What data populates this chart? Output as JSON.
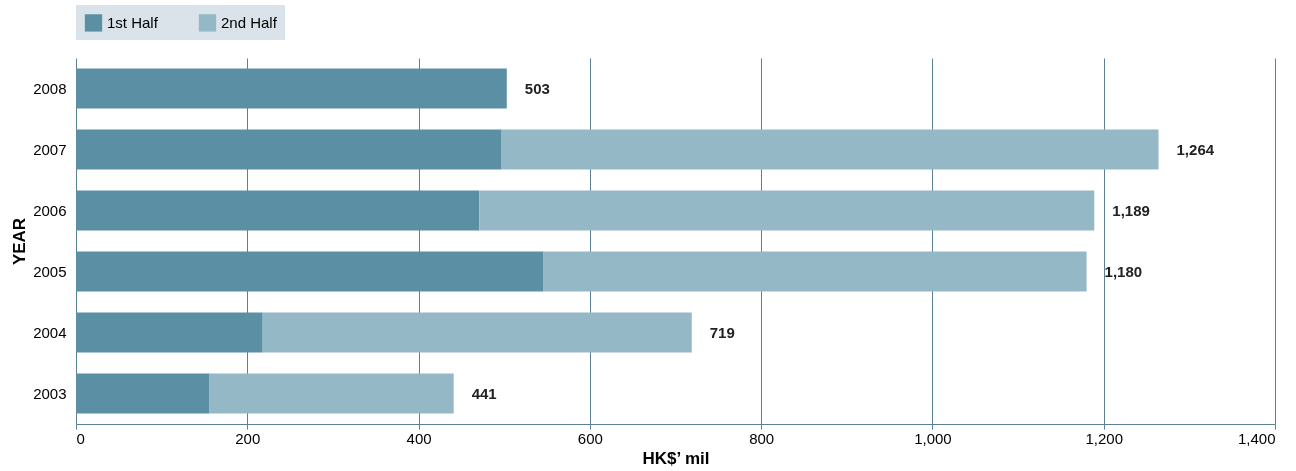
{
  "chart_data": {
    "type": "bar",
    "orientation": "horizontal",
    "stacked": true,
    "categories": [
      "2008",
      "2007",
      "2006",
      "2005",
      "2004",
      "2003"
    ],
    "series": [
      {
        "name": "1st Half",
        "color": "#5b8fa3",
        "values": [
          503,
          497,
          471,
          546,
          218,
          156
        ]
      },
      {
        "name": "2nd Half",
        "color": "#95b8c7",
        "values": [
          null,
          767,
          718,
          634,
          501,
          285
        ]
      }
    ],
    "totals": [
      "503",
      "1,264",
      "1,189",
      "1,180",
      "719",
      "441"
    ],
    "xlim": [
      0,
      1400
    ],
    "xticks": [
      0,
      200,
      400,
      600,
      800,
      {
        "value": 1000,
        "label": "1,000"
      },
      {
        "value": 1200,
        "label": "1,200"
      },
      {
        "value": 1400,
        "label": "1,400"
      }
    ],
    "xlabel": "HK$’ mil",
    "ylabel": "YEAR",
    "grid": "x",
    "legend": "top"
  }
}
